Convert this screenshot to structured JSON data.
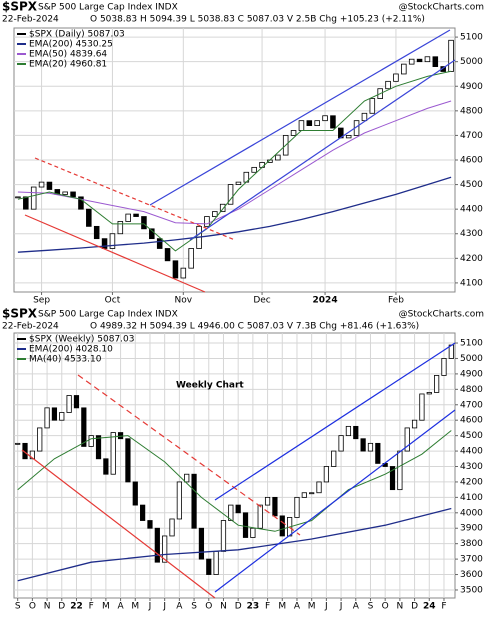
{
  "chart_data": [
    {
      "type": "candlestick",
      "symbol": "$SPX",
      "title": "S&P 500 Large Cap Index INDX",
      "watermark": "@StockCharts.com",
      "date": "22-Feb-2024",
      "quote": "O 5038.83 H 5094.39 L 5038.83 C 5087.03 V 2.5B Chg +105.23 (+2.11%)",
      "ylim": [
        4063,
        5137
      ],
      "yticks": [
        4100,
        4200,
        4300,
        4400,
        4500,
        4600,
        4700,
        4800,
        4900,
        5000,
        5100
      ],
      "xlim": [
        -0.5,
        55.5
      ],
      "xticks": [
        {
          "value": 3,
          "label": "Sep"
        },
        {
          "value": 12,
          "label": "Oct"
        },
        {
          "value": 21,
          "label": "Nov"
        },
        {
          "value": 31,
          "label": "Dec"
        },
        {
          "value": 39,
          "label": "2024"
        },
        {
          "value": 48,
          "label": "Feb"
        }
      ],
      "grid": true,
      "series": [
        {
          "name": "$SPX (Daily) 5087.03",
          "color": "#000000",
          "values": [
            4450,
            4400,
            4490,
            4510,
            4480,
            4460,
            4470,
            4450,
            4400,
            4330,
            4280,
            4240,
            4300,
            4350,
            4380,
            4370,
            4320,
            4280,
            4240,
            4190,
            4120,
            4160,
            4240,
            4330,
            4370,
            4390,
            4420,
            4500,
            4510,
            4550,
            4570,
            4590,
            4600,
            4620,
            4700,
            4720,
            4760,
            4740,
            4760,
            4780,
            4730,
            4690,
            4700,
            4760,
            4790,
            4850,
            4890,
            4920,
            4950,
            4990,
            5010,
            5000,
            5020,
            4980,
            4960,
            5087
          ]
        },
        {
          "name": "EMA(200) 4530.25",
          "color": "#1f2d8a",
          "x": [
            0,
            4,
            8,
            12,
            16,
            20,
            24,
            28,
            32,
            36,
            40,
            44,
            48,
            52,
            55
          ],
          "values": [
            4225,
            4233,
            4242,
            4252,
            4262,
            4275,
            4290,
            4308,
            4330,
            4358,
            4390,
            4425,
            4460,
            4500,
            4530
          ]
        },
        {
          "name": "EMA(50) 4839.64",
          "color": "#9b59d0",
          "x": [
            0,
            4,
            8,
            12,
            16,
            20,
            24,
            28,
            32,
            36,
            40,
            44,
            48,
            52,
            55
          ],
          "values": [
            4470,
            4465,
            4440,
            4415,
            4390,
            4345,
            4340,
            4400,
            4480,
            4560,
            4640,
            4710,
            4760,
            4810,
            4840
          ]
        },
        {
          "name": "EMA(20) 4960.81",
          "color": "#2e7d32",
          "x": [
            0,
            4,
            8,
            12,
            16,
            20,
            24,
            28,
            32,
            36,
            40,
            44,
            48,
            52,
            55
          ],
          "values": [
            4440,
            4470,
            4440,
            4340,
            4340,
            4230,
            4320,
            4480,
            4600,
            4720,
            4720,
            4840,
            4900,
            4940,
            4961
          ]
        }
      ]
    },
    {
      "type": "candlestick",
      "symbol": "$SPX",
      "title": "S&P 500 Large Cap Index INDX",
      "watermark": "@StockCharts.com",
      "date": "22-Feb-2024",
      "quote": "O 4989.32 H 5094.39 L 4946.00 C 5087.03 V 7.3B Chg +81.46 (+1.63%)",
      "annotation": "Weekly Chart",
      "ylim": [
        3448,
        5165
      ],
      "yticks": [
        3500,
        3600,
        3700,
        3800,
        3900,
        4000,
        4100,
        4200,
        4300,
        4400,
        4500,
        4600,
        4700,
        4800,
        4900,
        5000,
        5100
      ],
      "xlim": [
        -0.5,
        59.5
      ],
      "xticks": [
        {
          "value": 0,
          "label": "S"
        },
        {
          "value": 2,
          "label": "O"
        },
        {
          "value": 4,
          "label": "N"
        },
        {
          "value": 6,
          "label": "D"
        },
        {
          "value": 8,
          "label": "22"
        },
        {
          "value": 10,
          "label": "F"
        },
        {
          "value": 12,
          "label": "M"
        },
        {
          "value": 14,
          "label": "A"
        },
        {
          "value": 16,
          "label": "M"
        },
        {
          "value": 18,
          "label": "J"
        },
        {
          "value": 20,
          "label": "J"
        },
        {
          "value": 22,
          "label": "A"
        },
        {
          "value": 24,
          "label": "S"
        },
        {
          "value": 26,
          "label": "O"
        },
        {
          "value": 28,
          "label": "N"
        },
        {
          "value": 30,
          "label": "D"
        },
        {
          "value": 32,
          "label": "23"
        },
        {
          "value": 34,
          "label": "F"
        },
        {
          "value": 36,
          "label": "M"
        },
        {
          "value": 38,
          "label": "A"
        },
        {
          "value": 40,
          "label": "M"
        },
        {
          "value": 42,
          "label": "J"
        },
        {
          "value": 44,
          "label": "J"
        },
        {
          "value": 46,
          "label": "A"
        },
        {
          "value": 48,
          "label": "S"
        },
        {
          "value": 50,
          "label": "O"
        },
        {
          "value": 52,
          "label": "N"
        },
        {
          "value": 54,
          "label": "D"
        },
        {
          "value": 56,
          "label": "24"
        },
        {
          "value": 58,
          "label": "F"
        }
      ],
      "grid": true,
      "series": [
        {
          "name": "$SPX (Weekly) 5087.03",
          "color": "#000000",
          "values": [
            4450,
            4350,
            4400,
            4550,
            4680,
            4600,
            4650,
            4760,
            4680,
            4430,
            4500,
            4350,
            4250,
            4520,
            4480,
            4200,
            4050,
            3950,
            3900,
            3680,
            3850,
            3960,
            4200,
            4250,
            3900,
            3700,
            3600,
            3750,
            3950,
            4050,
            4000,
            3840,
            3900,
            4050,
            4100,
            3980,
            3850,
            3970,
            4100,
            4130,
            4130,
            4200,
            4300,
            4400,
            4500,
            4560,
            4480,
            4400,
            4450,
            4320,
            4300,
            4150,
            4400,
            4550,
            4600,
            4770,
            4780,
            4890,
            5000,
            5087
          ]
        },
        {
          "name": "EMA(200) 4028.10",
          "color": "#1f2d8a",
          "x": [
            0,
            10,
            20,
            30,
            40,
            50,
            59
          ],
          "values": [
            3560,
            3680,
            3730,
            3760,
            3830,
            3920,
            4028
          ]
        },
        {
          "name": "MA(40) 4533.10",
          "color": "#2e7d32",
          "x": [
            0,
            5,
            10,
            15,
            20,
            25,
            30,
            35,
            40,
            45,
            50,
            55,
            59
          ],
          "values": [
            4150,
            4350,
            4480,
            4500,
            4330,
            4100,
            3920,
            3880,
            3950,
            4150,
            4250,
            4380,
            4533
          ]
        }
      ]
    }
  ]
}
